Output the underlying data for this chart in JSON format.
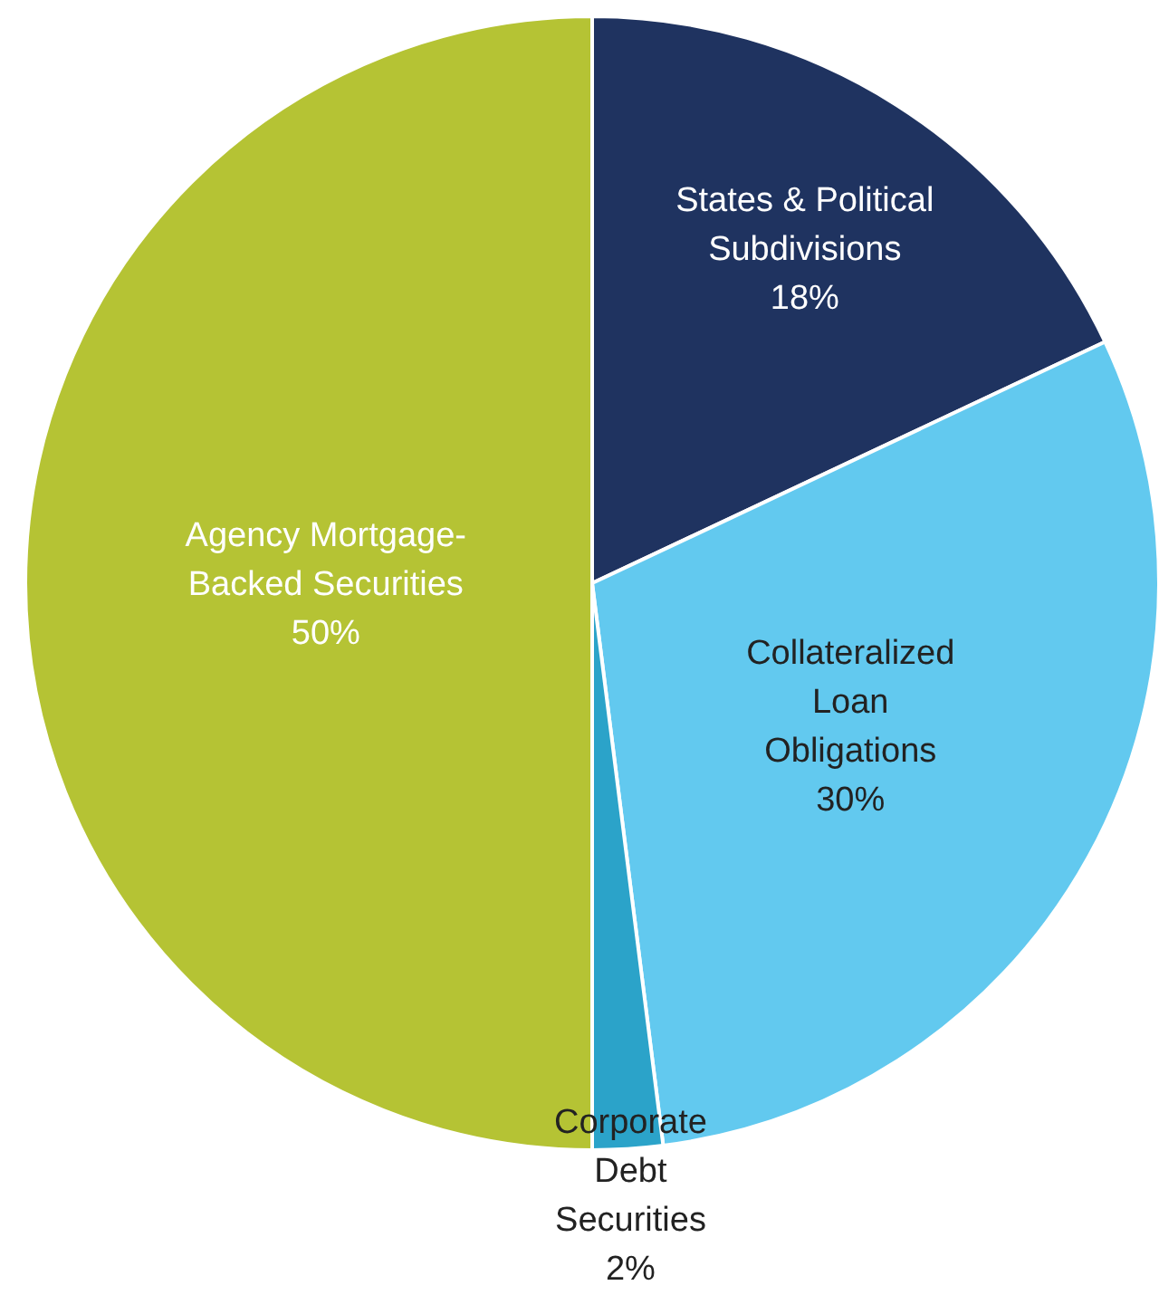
{
  "chart_data": {
    "type": "pie",
    "categories": [
      "States & Political Subdivisions",
      "Collateralized Loan Obligations",
      "Corporate Debt Securities",
      "Agency Mortgage-Backed Securities"
    ],
    "values": [
      18,
      30,
      2,
      50
    ],
    "colors": [
      "#1f3360",
      "#62c9ef",
      "#2ba3c9",
      "#b5c334"
    ],
    "value_labels": [
      "18%",
      "30%",
      "2%",
      "50%"
    ]
  }
}
